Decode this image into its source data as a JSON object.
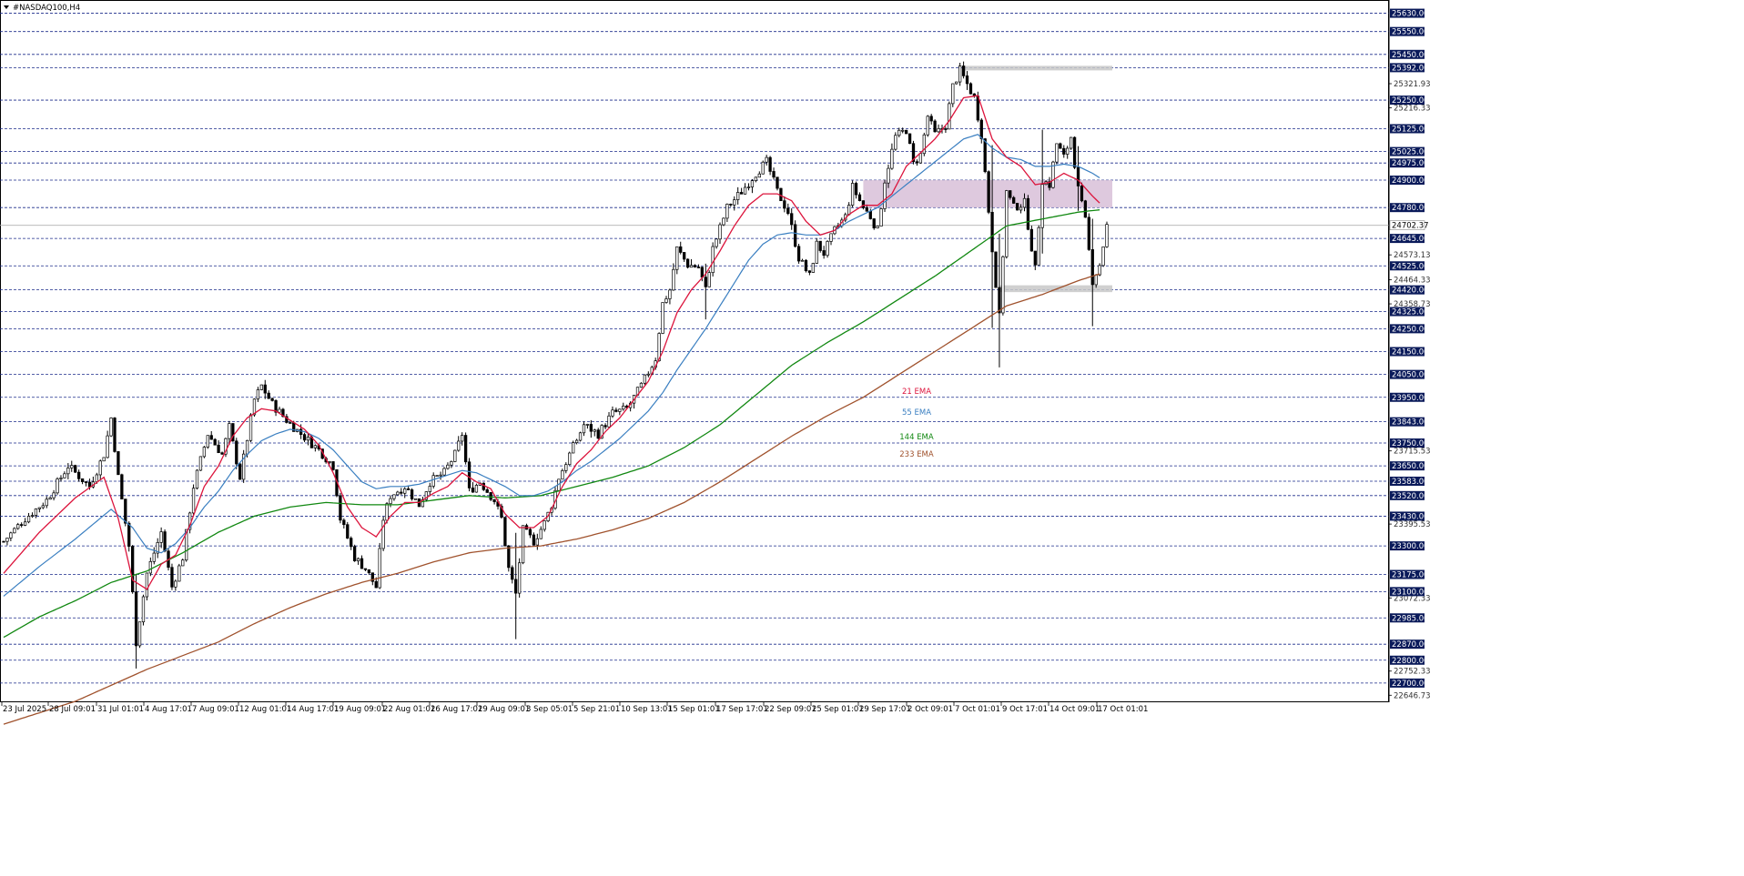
{
  "window": {
    "title": "#NASDAQ100,H4",
    "arrow_icon": "triangle-down-icon"
  },
  "colors": {
    "grid": "#1a2a8a",
    "candle": "#000000",
    "ema21": "#dc143c",
    "ema55": "#3a7fc1",
    "ema144": "#118811",
    "ema233": "#a0522d",
    "zone": "#d8bfd8",
    "zone_grey": "#c8c8c8",
    "axis_tag_bg": "#0a1a5a"
  },
  "chart_data": {
    "type": "candlestick",
    "symbol": "#NASDAQ100",
    "timeframe": "H4",
    "grid": true,
    "ylim": [
      22620,
      25680
    ],
    "price_levels": [
      25630,
      25550,
      25450,
      25392,
      25250,
      25125,
      25025,
      24975,
      24900,
      24780,
      24645,
      24525,
      24420,
      24325,
      24250,
      24150,
      24050,
      23950,
      23843,
      23750,
      23650,
      23583,
      23520,
      23430,
      23300,
      23175,
      23100,
      22985,
      22870,
      22800,
      22700
    ],
    "price_labels": [
      "25630.00",
      "25550.00",
      "25450.00",
      "25392.00",
      "25250.00",
      "25125.00",
      "25025.00",
      "24975.00",
      "24900.00",
      "24780.00",
      "24645.00",
      "24525.00",
      "24420.00",
      "24325.00",
      "24250.00",
      "24150.00",
      "24050.00",
      "23950.00",
      "23843.00",
      "23750.00",
      "23650.00",
      "23583.00",
      "23520.00",
      "23430.00",
      "23300.00",
      "23175.00",
      "23100.00",
      "22985.00",
      "22870.00",
      "22800.00",
      "22700.00"
    ],
    "scale_ticks": [
      "25321.93",
      "25216.33",
      "24573.13",
      "24464.33",
      "24358.73",
      "23715.53",
      "23395.53",
      "23072.33",
      "22752.33",
      "22646.73"
    ],
    "current_price": {
      "value": 24702.37,
      "label": "24702.37"
    },
    "x_labels": [
      "23 Jul 2025",
      "28 Jul 09:01",
      "31 Jul 01:01",
      "4 Aug 17:01",
      "7 Aug 09:01",
      "12 Aug 01:01",
      "14 Aug 17:01",
      "19 Aug 09:01",
      "22 Aug 01:01",
      "26 Aug 17:01",
      "29 Aug 09:01",
      "3 Sep 05:01",
      "5 Sep 21:01",
      "10 Sep 13:01",
      "15 Sep 01:01",
      "17 Sep 17:01",
      "22 Sep 09:01",
      "25 Sep 01:01",
      "29 Sep 17:01",
      "2 Oct 09:01",
      "7 Oct 01:01",
      "9 Oct 17:01",
      "14 Oct 09:01",
      "17 Oct 01:01"
    ],
    "anchors": [
      [
        0,
        23320
      ],
      [
        6,
        23420
      ],
      [
        12,
        23500
      ],
      [
        18,
        23650
      ],
      [
        24,
        23560
      ],
      [
        28,
        23700
      ],
      [
        30,
        23860
      ],
      [
        32,
        23600
      ],
      [
        35,
        23300
      ],
      [
        37,
        22880
      ],
      [
        40,
        23180
      ],
      [
        44,
        23360
      ],
      [
        47,
        23120
      ],
      [
        50,
        23250
      ],
      [
        53,
        23560
      ],
      [
        57,
        23790
      ],
      [
        61,
        23700
      ],
      [
        63,
        23820
      ],
      [
        66,
        23600
      ],
      [
        70,
        23940
      ],
      [
        72,
        24000
      ],
      [
        75,
        23920
      ],
      [
        79,
        23850
      ],
      [
        83,
        23790
      ],
      [
        88,
        23720
      ],
      [
        92,
        23650
      ],
      [
        94,
        23420
      ],
      [
        98,
        23250
      ],
      [
        101,
        23200
      ],
      [
        104,
        23120
      ],
      [
        106,
        23420
      ],
      [
        108,
        23520
      ],
      [
        112,
        23560
      ],
      [
        116,
        23480
      ],
      [
        119,
        23580
      ],
      [
        123,
        23620
      ],
      [
        126,
        23700
      ],
      [
        128,
        23790
      ],
      [
        130,
        23540
      ],
      [
        133,
        23580
      ],
      [
        137,
        23500
      ],
      [
        139,
        23420
      ],
      [
        141,
        23200
      ],
      [
        143,
        23090
      ],
      [
        145,
        23370
      ],
      [
        148,
        23320
      ],
      [
        151,
        23400
      ],
      [
        153,
        23480
      ],
      [
        155,
        23600
      ],
      [
        158,
        23700
      ],
      [
        162,
        23830
      ],
      [
        166,
        23790
      ],
      [
        170,
        23880
      ],
      [
        174,
        23900
      ],
      [
        178,
        24000
      ],
      [
        182,
        24120
      ],
      [
        184,
        24360
      ],
      [
        186,
        24420
      ],
      [
        188,
        24600
      ],
      [
        191,
        24530
      ],
      [
        194,
        24520
      ],
      [
        196,
        24420
      ],
      [
        198,
        24600
      ],
      [
        202,
        24780
      ],
      [
        206,
        24850
      ],
      [
        210,
        24930
      ],
      [
        213,
        24980
      ],
      [
        216,
        24850
      ],
      [
        219,
        24760
      ],
      [
        222,
        24560
      ],
      [
        225,
        24480
      ],
      [
        227,
        24620
      ],
      [
        229,
        24580
      ],
      [
        232,
        24680
      ],
      [
        235,
        24740
      ],
      [
        237,
        24870
      ],
      [
        240,
        24780
      ],
      [
        242,
        24740
      ],
      [
        244,
        24680
      ],
      [
        246,
        24900
      ],
      [
        249,
        25090
      ],
      [
        252,
        25120
      ],
      [
        254,
        24970
      ],
      [
        256,
        25010
      ],
      [
        258,
        25180
      ],
      [
        260,
        25100
      ],
      [
        263,
        25140
      ],
      [
        265,
        25310
      ],
      [
        267,
        25380
      ],
      [
        269,
        25320
      ],
      [
        271,
        25260
      ],
      [
        273,
        25100
      ],
      [
        276,
        24600
      ],
      [
        278,
        24300
      ],
      [
        280,
        24850
      ],
      [
        282,
        24780
      ],
      [
        285,
        24800
      ],
      [
        288,
        24510
      ],
      [
        290,
        24900
      ],
      [
        292,
        24880
      ],
      [
        294,
        25060
      ],
      [
        296,
        25000
      ],
      [
        298,
        25090
      ],
      [
        300,
        24860
      ],
      [
        302,
        24720
      ],
      [
        304,
        24460
      ],
      [
        306,
        24530
      ],
      [
        308,
        24700
      ]
    ],
    "ema_anchors": {
      "ema21": [
        [
          0,
          23180
        ],
        [
          10,
          23360
        ],
        [
          20,
          23510
        ],
        [
          28,
          23600
        ],
        [
          32,
          23420
        ],
        [
          36,
          23150
        ],
        [
          40,
          23110
        ],
        [
          44,
          23220
        ],
        [
          48,
          23260
        ],
        [
          52,
          23390
        ],
        [
          56,
          23560
        ],
        [
          60,
          23650
        ],
        [
          64,
          23780
        ],
        [
          68,
          23860
        ],
        [
          72,
          23900
        ],
        [
          76,
          23890
        ],
        [
          80,
          23850
        ],
        [
          84,
          23810
        ],
        [
          88,
          23740
        ],
        [
          92,
          23620
        ],
        [
          96,
          23470
        ],
        [
          100,
          23380
        ],
        [
          104,
          23340
        ],
        [
          108,
          23430
        ],
        [
          112,
          23490
        ],
        [
          116,
          23490
        ],
        [
          120,
          23530
        ],
        [
          124,
          23560
        ],
        [
          128,
          23620
        ],
        [
          132,
          23580
        ],
        [
          136,
          23550
        ],
        [
          140,
          23440
        ],
        [
          144,
          23380
        ],
        [
          148,
          23380
        ],
        [
          152,
          23430
        ],
        [
          156,
          23560
        ],
        [
          160,
          23660
        ],
        [
          164,
          23720
        ],
        [
          168,
          23800
        ],
        [
          172,
          23860
        ],
        [
          176,
          23940
        ],
        [
          180,
          24020
        ],
        [
          184,
          24150
        ],
        [
          188,
          24320
        ],
        [
          192,
          24420
        ],
        [
          196,
          24490
        ],
        [
          200,
          24590
        ],
        [
          204,
          24700
        ],
        [
          208,
          24790
        ],
        [
          212,
          24840
        ],
        [
          216,
          24840
        ],
        [
          220,
          24810
        ],
        [
          224,
          24720
        ],
        [
          228,
          24660
        ],
        [
          232,
          24680
        ],
        [
          236,
          24750
        ],
        [
          240,
          24790
        ],
        [
          244,
          24790
        ],
        [
          248,
          24840
        ],
        [
          252,
          24960
        ],
        [
          256,
          25020
        ],
        [
          260,
          25080
        ],
        [
          264,
          25160
        ],
        [
          268,
          25260
        ],
        [
          272,
          25270
        ],
        [
          276,
          25080
        ],
        [
          280,
          25000
        ],
        [
          284,
          24960
        ],
        [
          288,
          24880
        ],
        [
          292,
          24890
        ],
        [
          296,
          24930
        ],
        [
          300,
          24900
        ],
        [
          304,
          24830
        ],
        [
          306,
          24800
        ]
      ],
      "ema55": [
        [
          0,
          23080
        ],
        [
          10,
          23210
        ],
        [
          20,
          23330
        ],
        [
          30,
          23460
        ],
        [
          36,
          23380
        ],
        [
          40,
          23290
        ],
        [
          44,
          23270
        ],
        [
          48,
          23310
        ],
        [
          52,
          23380
        ],
        [
          56,
          23470
        ],
        [
          60,
          23540
        ],
        [
          64,
          23630
        ],
        [
          68,
          23700
        ],
        [
          72,
          23760
        ],
        [
          76,
          23790
        ],
        [
          80,
          23810
        ],
        [
          84,
          23800
        ],
        [
          88,
          23770
        ],
        [
          92,
          23720
        ],
        [
          96,
          23650
        ],
        [
          100,
          23580
        ],
        [
          104,
          23550
        ],
        [
          108,
          23560
        ],
        [
          112,
          23560
        ],
        [
          116,
          23570
        ],
        [
          120,
          23590
        ],
        [
          124,
          23610
        ],
        [
          128,
          23630
        ],
        [
          132,
          23620
        ],
        [
          136,
          23590
        ],
        [
          140,
          23560
        ],
        [
          144,
          23520
        ],
        [
          148,
          23520
        ],
        [
          152,
          23540
        ],
        [
          156,
          23580
        ],
        [
          160,
          23630
        ],
        [
          164,
          23670
        ],
        [
          168,
          23720
        ],
        [
          172,
          23770
        ],
        [
          176,
          23830
        ],
        [
          180,
          23890
        ],
        [
          184,
          23970
        ],
        [
          188,
          24070
        ],
        [
          192,
          24160
        ],
        [
          196,
          24250
        ],
        [
          200,
          24350
        ],
        [
          204,
          24450
        ],
        [
          208,
          24550
        ],
        [
          212,
          24620
        ],
        [
          216,
          24660
        ],
        [
          220,
          24670
        ],
        [
          224,
          24660
        ],
        [
          228,
          24660
        ],
        [
          232,
          24680
        ],
        [
          236,
          24720
        ],
        [
          240,
          24750
        ],
        [
          244,
          24780
        ],
        [
          248,
          24830
        ],
        [
          252,
          24880
        ],
        [
          256,
          24930
        ],
        [
          260,
          24980
        ],
        [
          264,
          25030
        ],
        [
          268,
          25080
        ],
        [
          272,
          25100
        ],
        [
          276,
          25040
        ],
        [
          280,
          25000
        ],
        [
          284,
          24990
        ],
        [
          288,
          24960
        ],
        [
          292,
          24960
        ],
        [
          296,
          24970
        ],
        [
          300,
          24960
        ],
        [
          304,
          24930
        ],
        [
          306,
          24910
        ]
      ],
      "ema144": [
        [
          0,
          22900
        ],
        [
          10,
          22990
        ],
        [
          20,
          23060
        ],
        [
          30,
          23140
        ],
        [
          40,
          23190
        ],
        [
          50,
          23270
        ],
        [
          60,
          23360
        ],
        [
          70,
          23430
        ],
        [
          80,
          23470
        ],
        [
          90,
          23490
        ],
        [
          100,
          23480
        ],
        [
          110,
          23480
        ],
        [
          120,
          23500
        ],
        [
          130,
          23520
        ],
        [
          140,
          23510
        ],
        [
          150,
          23520
        ],
        [
          160,
          23560
        ],
        [
          170,
          23600
        ],
        [
          180,
          23650
        ],
        [
          190,
          23730
        ],
        [
          200,
          23830
        ],
        [
          210,
          23960
        ],
        [
          220,
          24090
        ],
        [
          230,
          24190
        ],
        [
          240,
          24280
        ],
        [
          250,
          24380
        ],
        [
          260,
          24480
        ],
        [
          270,
          24590
        ],
        [
          280,
          24700
        ],
        [
          290,
          24730
        ],
        [
          300,
          24760
        ],
        [
          306,
          24770
        ]
      ],
      "ema233": [
        [
          0,
          22520
        ],
        [
          20,
          22620
        ],
        [
          40,
          22760
        ],
        [
          60,
          22880
        ],
        [
          70,
          22960
        ],
        [
          80,
          23030
        ],
        [
          90,
          23090
        ],
        [
          100,
          23140
        ],
        [
          110,
          23180
        ],
        [
          120,
          23230
        ],
        [
          130,
          23270
        ],
        [
          140,
          23290
        ],
        [
          150,
          23300
        ],
        [
          160,
          23330
        ],
        [
          170,
          23370
        ],
        [
          180,
          23420
        ],
        [
          190,
          23490
        ],
        [
          200,
          23580
        ],
        [
          210,
          23680
        ],
        [
          220,
          23780
        ],
        [
          230,
          23870
        ],
        [
          240,
          23950
        ],
        [
          250,
          24050
        ],
        [
          260,
          24150
        ],
        [
          270,
          24250
        ],
        [
          280,
          24350
        ],
        [
          290,
          24400
        ],
        [
          300,
          24460
        ],
        [
          306,
          24490
        ]
      ]
    },
    "series": [
      {
        "name": "21 EMA"
      },
      {
        "name": "55 EMA"
      },
      {
        "name": "144 EMA"
      },
      {
        "name": "233 EMA"
      }
    ],
    "zones": [
      {
        "from_bar": 240,
        "to_bar": 308,
        "low": 24780,
        "high": 24900,
        "color": "purple"
      },
      {
        "from_bar": 268,
        "to_bar": 308,
        "low": 25380,
        "high": 25400,
        "color": "grey"
      },
      {
        "from_bar": 278,
        "to_bar": 308,
        "low": 24410,
        "high": 24440,
        "color": "grey"
      }
    ]
  }
}
